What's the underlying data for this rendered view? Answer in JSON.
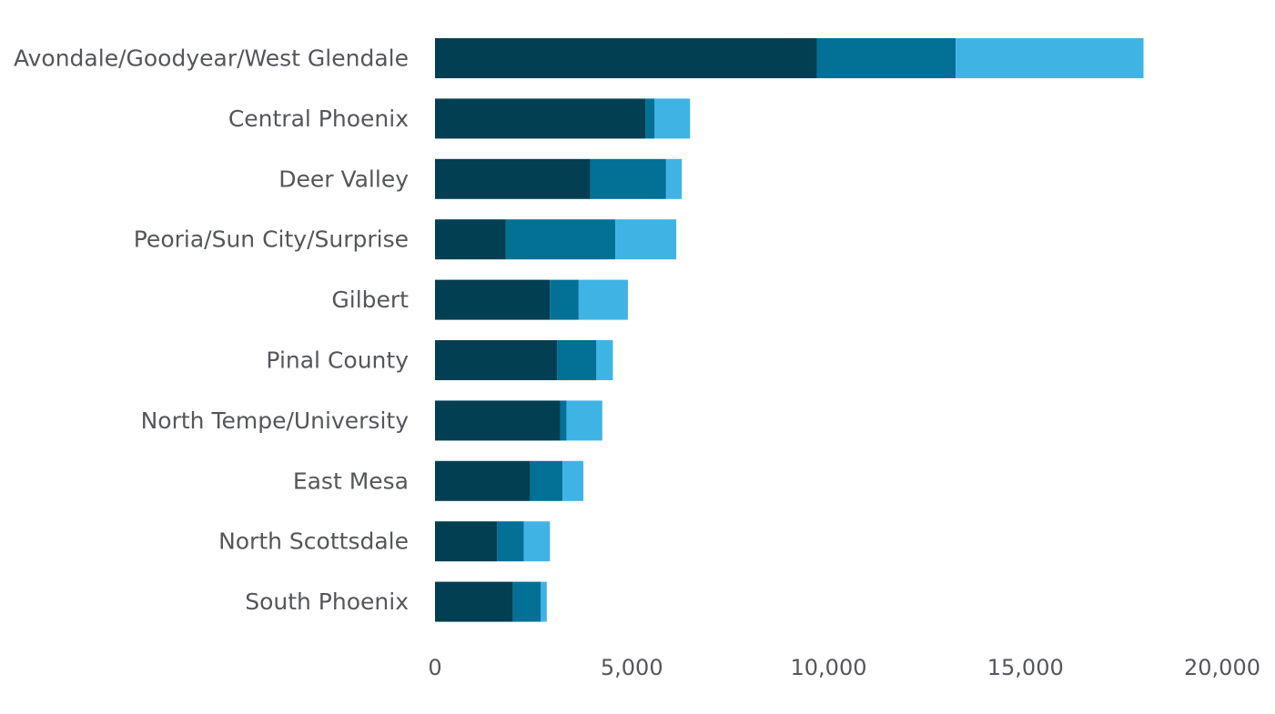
{
  "chart_data": {
    "type": "bar",
    "orientation": "horizontal",
    "stacked": true,
    "categories": [
      "Avondale/Goodyear/West Glendale",
      "Central Phoenix",
      "Deer Valley",
      "Peoria/Sun City/Surprise",
      "Gilbert",
      "Pinal County",
      "North Tempe/University",
      "East Mesa",
      "North Scottsdale",
      "South Phoenix"
    ],
    "series": [
      {
        "color": "#033f52",
        "values": [
          9700,
          5350,
          3950,
          1800,
          2920,
          3100,
          3180,
          2420,
          1580,
          1980
        ]
      },
      {
        "color": "#037096",
        "values": [
          3530,
          230,
          1920,
          2780,
          730,
          1000,
          160,
          820,
          680,
          710
        ]
      },
      {
        "color": "#40b3e5",
        "values": [
          4770,
          900,
          400,
          1550,
          1250,
          420,
          910,
          530,
          660,
          150
        ]
      }
    ],
    "xticks": [
      "0",
      "5,000",
      "10,000",
      "15,000",
      "20,000"
    ],
    "xlim": [
      0,
      20000
    ],
    "xlabel": "",
    "ylabel": "",
    "title": "",
    "grid": false,
    "legend": "none"
  }
}
